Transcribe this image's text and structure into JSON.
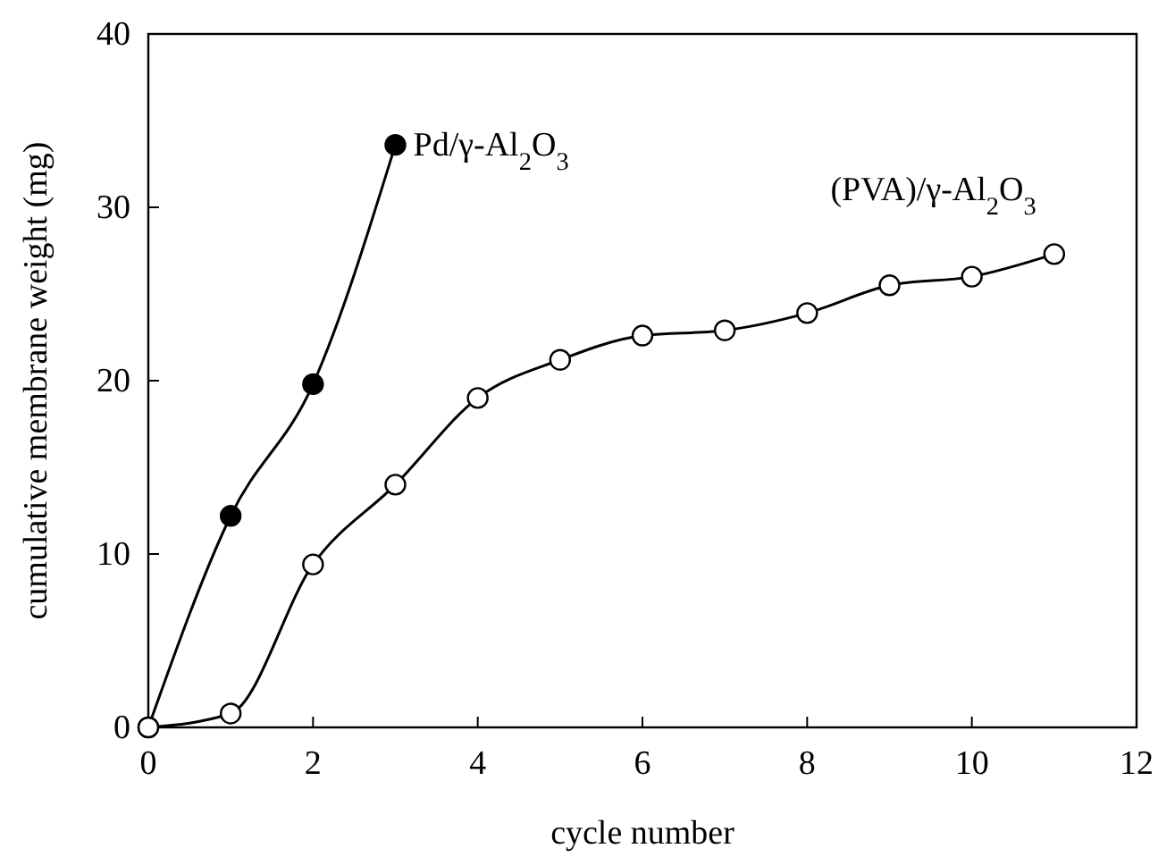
{
  "chart_data": {
    "type": "line",
    "xlabel": "cycle number",
    "ylabel": "cumulative membrane weight (mg)",
    "xlim": [
      0,
      12
    ],
    "xticks": [
      0,
      2,
      4,
      6,
      8,
      10,
      12
    ],
    "ylim": [
      0,
      40
    ],
    "yticks": [
      0,
      10,
      20,
      30,
      40
    ],
    "grid": false,
    "marker": "circle",
    "line_style": "solid",
    "series": [
      {
        "name": "Pd/γ-Al$_{2}$O$_{3}$",
        "color": "#000000",
        "x": [
          0,
          1,
          2,
          3
        ],
        "values": [
          0,
          12.2,
          19.8,
          33.6
        ]
      },
      {
        "name": "(PVA)/γ-Al$_{2}$O$_{3}$",
        "color": "#ffffff",
        "x": [
          0,
          1,
          2,
          3,
          4,
          5,
          6,
          7,
          8,
          9,
          10,
          11
        ],
        "values": [
          0,
          0.8,
          9.4,
          14.0,
          19.0,
          21.2,
          22.6,
          22.9,
          23.9,
          25.5,
          26.0,
          27.3
        ]
      }
    ]
  }
}
